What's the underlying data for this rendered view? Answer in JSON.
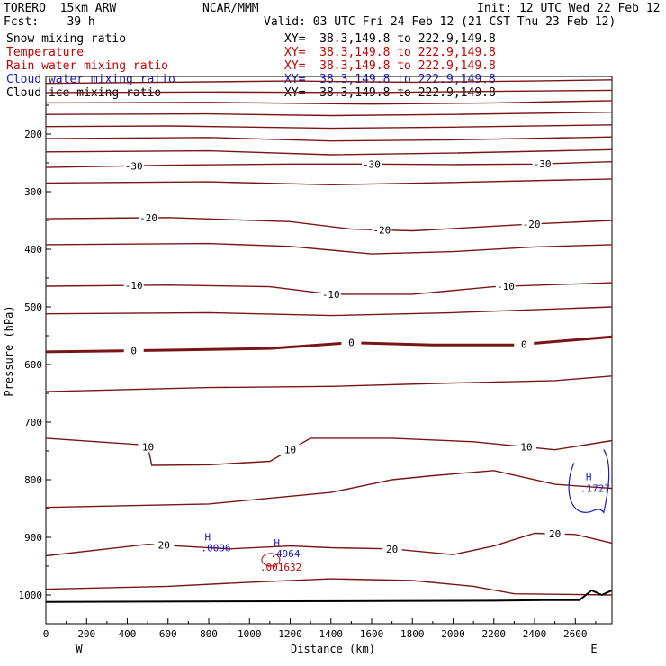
{
  "header": {
    "model": "TORERO  15km ARW",
    "org": "NCAR/MMM",
    "init": "Init: 12 UTC Wed 22 Feb 12",
    "fcst": "Fcst:    39 h",
    "valid": "Valid: 03 UTC Fri 24 Feb 12 (21 CST Thu 23 Feb 12)",
    "fields": [
      {
        "name": "Snow mixing ratio",
        "xy": "XY=  38.3,149.8 to 222.9,149.8",
        "color": "#000000"
      },
      {
        "name": "Temperature",
        "xy": "XY=  38.3,149.8 to 222.9,149.8",
        "color": "#cc0000"
      },
      {
        "name": "Rain water mixing ratio",
        "xy": "XY=  38.3,149.8 to 222.9,149.8",
        "color": "#cc0000"
      },
      {
        "name": "Cloud water mixing ratio",
        "xy": "XY=  38.3,149.8 to 222.9,149.8",
        "color": "#0000cc"
      },
      {
        "name": "Cloud ice mixing ratio",
        "xy": "XY=  38.3,149.8 to 222.9,149.8",
        "color": "#000000"
      }
    ]
  },
  "colors": {
    "isotherm": "#7a1515",
    "rain": "#cc0000",
    "cloud_water": "#1a1acc",
    "terrain": "#000000"
  },
  "chart_data": {
    "type": "line",
    "xlabel": "Distance (km)",
    "ylabel": "Pressure (hPa)",
    "xlim": [
      0,
      2780
    ],
    "ylim": [
      1050,
      100
    ],
    "x_ticks": [
      "0",
      "200",
      "400",
      "600",
      "800",
      "1000",
      "1200",
      "1400",
      "1600",
      "1800",
      "2000",
      "2200",
      "2400",
      "2600"
    ],
    "y_ticks": [
      "200",
      "300",
      "400",
      "500",
      "600",
      "700",
      "800",
      "900",
      "1000"
    ],
    "edge_labels": {
      "left": "W",
      "right": "E"
    },
    "isotherms": [
      {
        "level": null,
        "points": [
          [
            0,
            112
          ],
          [
            600,
            110
          ],
          [
            1200,
            108
          ],
          [
            1800,
            110
          ],
          [
            2400,
            108
          ],
          [
            2780,
            106
          ]
        ]
      },
      {
        "level": null,
        "points": [
          [
            0,
            128
          ],
          [
            800,
            127
          ],
          [
            1600,
            128
          ],
          [
            2200,
            126
          ],
          [
            2780,
            124
          ]
        ]
      },
      {
        "level": null,
        "points": [
          [
            0,
            146
          ],
          [
            800,
            145
          ],
          [
            1600,
            148
          ],
          [
            2200,
            146
          ],
          [
            2780,
            142
          ]
        ]
      },
      {
        "level": null,
        "points": [
          [
            0,
            166
          ],
          [
            800,
            165
          ],
          [
            1400,
            168
          ],
          [
            2000,
            166
          ],
          [
            2780,
            162
          ]
        ]
      },
      {
        "level": null,
        "points": [
          [
            0,
            187
          ],
          [
            600,
            186
          ],
          [
            1400,
            190
          ],
          [
            2000,
            188
          ],
          [
            2780,
            184
          ]
        ]
      },
      {
        "level": null,
        "points": [
          [
            0,
            208
          ],
          [
            800,
            206
          ],
          [
            1400,
            212
          ],
          [
            2000,
            210
          ],
          [
            2780,
            205
          ]
        ]
      },
      {
        "level": null,
        "points": [
          [
            0,
            231
          ],
          [
            800,
            229
          ],
          [
            1400,
            236
          ],
          [
            2000,
            233
          ],
          [
            2780,
            227
          ]
        ]
      },
      {
        "level": -30,
        "points": [
          [
            0,
            258
          ],
          [
            600,
            254
          ],
          [
            1200,
            252
          ],
          [
            1600,
            252
          ],
          [
            2000,
            253
          ],
          [
            2400,
            252
          ],
          [
            2780,
            248
          ]
        ]
      },
      {
        "level": null,
        "points": [
          [
            0,
            285
          ],
          [
            800,
            283
          ],
          [
            1400,
            288
          ],
          [
            2000,
            284
          ],
          [
            2780,
            278
          ]
        ]
      },
      {
        "level": -20,
        "points": [
          [
            0,
            347
          ],
          [
            600,
            345
          ],
          [
            1200,
            352
          ],
          [
            1500,
            365
          ],
          [
            1800,
            368
          ],
          [
            2100,
            362
          ],
          [
            2400,
            356
          ],
          [
            2780,
            350
          ]
        ]
      },
      {
        "level": null,
        "points": [
          [
            0,
            392
          ],
          [
            800,
            390
          ],
          [
            1200,
            395
          ],
          [
            1600,
            408
          ],
          [
            2000,
            404
          ],
          [
            2400,
            396
          ],
          [
            2780,
            392
          ]
        ]
      },
      {
        "level": -10,
        "points": [
          [
            0,
            464
          ],
          [
            600,
            462
          ],
          [
            1100,
            465
          ],
          [
            1400,
            478
          ],
          [
            1800,
            478
          ],
          [
            2200,
            465
          ],
          [
            2780,
            458
          ]
        ]
      },
      {
        "level": null,
        "points": [
          [
            0,
            512
          ],
          [
            800,
            510
          ],
          [
            1400,
            515
          ],
          [
            2000,
            510
          ],
          [
            2780,
            500
          ]
        ]
      },
      {
        "level": 0,
        "bold": true,
        "points": [
          [
            0,
            578
          ],
          [
            600,
            575
          ],
          [
            1100,
            572
          ],
          [
            1500,
            562
          ],
          [
            1900,
            566
          ],
          [
            2300,
            566
          ],
          [
            2780,
            552
          ]
        ]
      },
      {
        "level": null,
        "points": [
          [
            0,
            647
          ],
          [
            800,
            640
          ],
          [
            1400,
            638
          ],
          [
            2000,
            632
          ],
          [
            2500,
            628
          ],
          [
            2780,
            620
          ]
        ]
      },
      {
        "level": 10,
        "points": [
          [
            0,
            728
          ],
          [
            500,
            740
          ],
          [
            520,
            775
          ],
          [
            800,
            774
          ],
          [
            1100,
            768
          ],
          [
            1300,
            728
          ],
          [
            1700,
            728
          ],
          [
            2100,
            734
          ],
          [
            2500,
            748
          ],
          [
            2780,
            732
          ]
        ]
      },
      {
        "level": null,
        "points": [
          [
            0,
            848
          ],
          [
            800,
            842
          ],
          [
            1400,
            822
          ],
          [
            1700,
            800
          ],
          [
            1900,
            793
          ],
          [
            2200,
            784
          ],
          [
            2500,
            808
          ],
          [
            2780,
            815
          ]
        ]
      },
      {
        "level": 20,
        "points": [
          [
            0,
            932
          ],
          [
            500,
            912
          ],
          [
            900,
            920
          ],
          [
            1200,
            915
          ],
          [
            1400,
            918
          ],
          [
            1700,
            920
          ],
          [
            2000,
            930
          ],
          [
            2200,
            915
          ],
          [
            2400,
            893
          ],
          [
            2600,
            895
          ],
          [
            2780,
            910
          ]
        ]
      },
      {
        "level": null,
        "points": [
          [
            0,
            990
          ],
          [
            600,
            985
          ],
          [
            1000,
            978
          ],
          [
            1400,
            972
          ],
          [
            1800,
            975
          ],
          [
            2100,
            985
          ],
          [
            2300,
            998
          ],
          [
            2780,
            1000
          ]
        ]
      }
    ],
    "cloud_water_max": [
      {
        "label": "H",
        "value": ".1727",
        "x": 2660,
        "p": 810
      }
    ],
    "rain_max": [
      {
        "label": "",
        "value": ".001632",
        "x": 1140,
        "p": 942
      }
    ],
    "snow_max": [
      {
        "label": "H",
        "value": ".0096",
        "x": 780,
        "p": 912
      },
      {
        "label": "H",
        "value": ".4964",
        "x": 1120,
        "p": 922
      }
    ],
    "terrain": [
      [
        0,
        1012
      ],
      [
        2200,
        1010
      ],
      [
        2450,
        1009
      ],
      [
        2620,
        1009
      ],
      [
        2680,
        992
      ],
      [
        2730,
        1000
      ],
      [
        2780,
        992
      ]
    ]
  }
}
